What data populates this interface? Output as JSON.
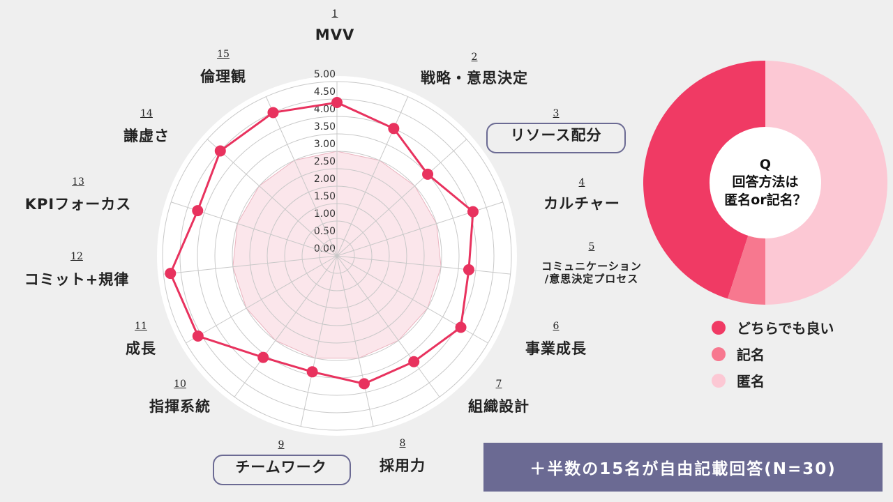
{
  "chart_data": [
    {
      "type": "radar",
      "category_numbers": [
        1,
        2,
        3,
        4,
        5,
        6,
        7,
        8,
        9,
        10,
        11,
        12,
        13,
        14,
        15
      ],
      "categories": [
        "MVV",
        "戦略・意思決定",
        "リソース配分",
        "カルチャー",
        "コミュニケーション\n/意思決定プロセス",
        "事業成長",
        "組織設計",
        "採用力",
        "チームワーク",
        "指揮系統",
        "成長",
        "コミット+規律",
        "KPIフォーカス",
        "謙虚さ",
        "倫理観"
      ],
      "series": [
        {
          "color": "#f9d6dd",
          "values": [
            3,
            3,
            3,
            3,
            3,
            3,
            3,
            3,
            3,
            3,
            3,
            3,
            3,
            3,
            3
          ]
        },
        {
          "color": "#e8325e",
          "values": [
            4.4,
            4.0,
            3.5,
            4.1,
            3.8,
            4.1,
            3.75,
            3.75,
            3.4,
            3.6,
            4.6,
            4.8,
            4.2,
            4.5,
            4.5
          ]
        }
      ],
      "ylim": [
        0,
        5
      ],
      "yticks": [
        {
          "value": 0,
          "label": "0.00"
        },
        {
          "value": 0.5,
          "label": "0.50"
        },
        {
          "value": 1,
          "label": "1.00"
        },
        {
          "value": 1.5,
          "label": "1.50"
        },
        {
          "value": 2,
          "label": "2.00"
        },
        {
          "value": 2.5,
          "label": "2.50"
        },
        {
          "value": 3,
          "label": "3.00"
        },
        {
          "value": 3.5,
          "label": "3.50"
        },
        {
          "value": 4,
          "label": "4.00"
        },
        {
          "value": 4.5,
          "label": "4.50"
        },
        {
          "value": 5,
          "label": "5.00"
        }
      ],
      "grid": true
    },
    {
      "type": "donut",
      "title": "Q\n回答方法は\n匿名or記名？",
      "categories": [
        "どちらでも良い",
        "記名",
        "匿名"
      ],
      "values": [
        45,
        5,
        50
      ],
      "colors": [
        "#f03a64",
        "#f7788f",
        "#fcc8d4"
      ]
    }
  ],
  "note": "＋半数の15名が自由記載回答(N=30)"
}
